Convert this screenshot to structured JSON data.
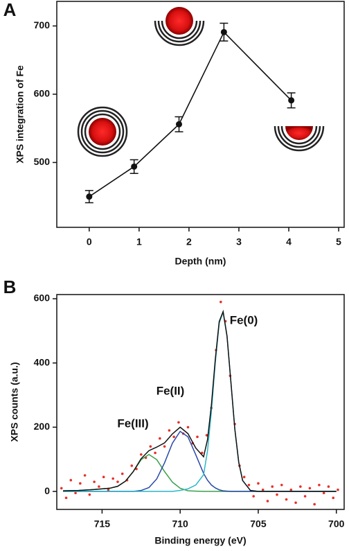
{
  "chart_data": [
    {
      "type": "line",
      "panel_label": "A",
      "xlabel": "Depth (nm)",
      "ylabel": "XPS integration of Fe",
      "x": [
        0,
        0.9,
        1.8,
        2.7,
        4.05
      ],
      "series": [
        {
          "color": "#111111",
          "values": [
            450,
            494,
            556,
            691,
            591
          ],
          "errors": [
            9,
            10,
            11,
            13,
            11
          ]
        }
      ],
      "xlim": [
        -0.65,
        5.11
      ],
      "ylim": [
        405,
        736
      ],
      "xticks": [
        0,
        1,
        2,
        3,
        4,
        5
      ],
      "yticks": [
        500,
        600,
        700
      ]
    },
    {
      "type": "line",
      "panel_label": "B",
      "xlabel": "Binding energy (eV)",
      "ylabel": "XPS counts (a.u.)",
      "annotations": [
        "Fe(0)",
        "Fe(II)",
        "Fe(III)"
      ],
      "x": [
        717.5,
        716.5,
        715.5,
        714.5,
        714,
        713.5,
        713,
        712.5,
        712,
        711.5,
        711,
        710.5,
        710,
        709.5,
        709,
        708.5,
        708.25,
        708,
        707.75,
        707.5,
        707.25,
        707,
        706.75,
        706.5,
        706.25,
        706,
        705.5,
        705,
        704,
        703,
        702,
        701,
        700
      ],
      "series": [
        {
          "type": "scatter",
          "color": "#e8302a",
          "x": [
            717.6,
            717.3,
            717.0,
            716.7,
            716.4,
            716.1,
            715.8,
            715.5,
            715.2,
            714.9,
            714.6,
            714.3,
            714.0,
            713.7,
            713.4,
            713.1,
            712.8,
            712.5,
            712.2,
            711.9,
            711.6,
            711.3,
            711.0,
            710.7,
            710.4,
            710.1,
            709.8,
            709.5,
            709.2,
            708.9,
            708.6,
            708.3,
            708.0,
            707.7,
            707.4,
            707.1,
            706.8,
            706.5,
            706.2,
            705.9,
            705.6,
            705.3,
            705.0,
            704.7,
            704.4,
            704.1,
            703.8,
            703.5,
            703.2,
            702.9,
            702.6,
            702.3,
            702.0,
            701.7,
            701.4,
            701.1,
            700.8,
            700.5,
            700.2,
            699.9
          ],
          "values": [
            10,
            -20,
            35,
            -5,
            25,
            50,
            -10,
            30,
            15,
            45,
            5,
            40,
            30,
            55,
            35,
            80,
            70,
            115,
            105,
            140,
            120,
            165,
            140,
            190,
            170,
            215,
            180,
            200,
            150,
            170,
            120,
            175,
            260,
            440,
            590,
            530,
            360,
            210,
            80,
            45,
            20,
            -15,
            25,
            5,
            -30,
            15,
            -10,
            20,
            -25,
            5,
            -35,
            15,
            -15,
            10,
            -40,
            20,
            -5,
            15,
            -20,
            5
          ]
        },
        {
          "color": "#3aa048",
          "values": [
            2,
            3,
            6,
            10,
            16,
            32,
            62,
            99,
            115,
            99,
            62,
            29,
            10,
            2,
            1,
            0,
            0,
            0,
            0,
            0,
            0,
            0,
            0,
            0,
            0,
            0,
            0,
            0,
            0,
            0,
            0,
            0,
            0
          ]
        },
        {
          "color": "#2a48a8",
          "values": [
            0,
            0,
            0,
            0,
            0,
            0,
            0,
            3,
            12,
            39,
            89,
            150,
            187,
            170,
            114,
            56,
            35,
            20,
            11,
            5,
            2,
            1,
            0,
            0,
            0,
            0,
            0,
            0,
            0,
            0,
            0,
            0,
            0
          ]
        },
        {
          "color": "#29b6c8",
          "values": [
            0,
            0,
            0,
            0,
            0,
            0,
            0,
            0,
            0,
            0,
            0,
            0,
            3,
            8,
            20,
            52,
            126,
            249,
            401,
            524,
            558,
            483,
            340,
            194,
            91,
            34,
            3,
            0,
            0,
            0,
            0,
            0,
            0
          ]
        },
        {
          "color": "#111111",
          "values": [
            2,
            3,
            6,
            10,
            16,
            32,
            62,
            102,
            127,
            138,
            151,
            179,
            200,
            180,
            135,
            108,
            161,
            269,
            412,
            529,
            560,
            484,
            340,
            194,
            91,
            34,
            3,
            0,
            0,
            0,
            0,
            0,
            0
          ]
        }
      ],
      "xlim": [
        717.9,
        699.5
      ],
      "ylim": [
        -56,
        613
      ],
      "xticks": [
        715,
        710,
        705,
        700
      ],
      "yticks": [
        0,
        200,
        400,
        600
      ]
    }
  ]
}
